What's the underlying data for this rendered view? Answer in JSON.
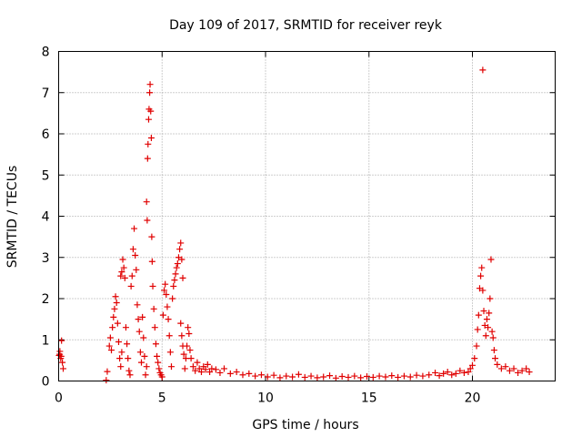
{
  "chart_data": {
    "type": "scatter",
    "title": "Day 109 of 2017, SRMTID for receiver reyk",
    "xlabel": "GPS time / hours",
    "ylabel": "SRMTID / TECUs",
    "xlim": [
      0,
      24
    ],
    "ylim": [
      0,
      8
    ],
    "xticks": [
      0,
      5,
      10,
      15,
      20
    ],
    "yticks": [
      0,
      1,
      2,
      3,
      4,
      5,
      6,
      7,
      8
    ],
    "grid": true,
    "marker": "+",
    "marker_color": "#e00000",
    "series": [
      {
        "name": "SRMTID",
        "points": [
          [
            0.02,
            0.62
          ],
          [
            0.06,
            0.72
          ],
          [
            0.1,
            0.55
          ],
          [
            0.14,
            0.98
          ],
          [
            0.18,
            0.45
          ],
          [
            0.22,
            0.3
          ],
          [
            0.05,
            0.65
          ],
          [
            0.12,
            0.6
          ],
          [
            2.3,
            0.02
          ],
          [
            2.35,
            0.23
          ],
          [
            2.45,
            0.85
          ],
          [
            2.5,
            1.05
          ],
          [
            2.55,
            0.75
          ],
          [
            2.6,
            1.3
          ],
          [
            2.65,
            1.55
          ],
          [
            2.7,
            1.75
          ],
          [
            2.75,
            2.05
          ],
          [
            2.8,
            1.9
          ],
          [
            2.85,
            1.4
          ],
          [
            2.9,
            0.95
          ],
          [
            2.95,
            0.55
          ],
          [
            3.0,
            0.35
          ],
          [
            3.05,
            0.7
          ],
          [
            3.0,
            2.55
          ],
          [
            3.05,
            2.65
          ],
          [
            3.1,
            2.95
          ],
          [
            3.15,
            2.75
          ],
          [
            3.2,
            2.5
          ],
          [
            3.25,
            1.3
          ],
          [
            3.3,
            0.9
          ],
          [
            3.35,
            0.55
          ],
          [
            3.4,
            0.25
          ],
          [
            3.45,
            0.15
          ],
          [
            3.5,
            2.3
          ],
          [
            3.55,
            2.55
          ],
          [
            3.6,
            3.2
          ],
          [
            3.65,
            3.7
          ],
          [
            3.7,
            3.05
          ],
          [
            3.75,
            2.7
          ],
          [
            3.8,
            1.85
          ],
          [
            3.85,
            1.5
          ],
          [
            3.9,
            1.2
          ],
          [
            3.95,
            0.7
          ],
          [
            4.0,
            0.45
          ],
          [
            4.05,
            1.55
          ],
          [
            4.1,
            1.05
          ],
          [
            4.15,
            0.6
          ],
          [
            4.2,
            0.15
          ],
          [
            4.25,
            0.35
          ],
          [
            4.25,
            4.35
          ],
          [
            4.28,
            3.9
          ],
          [
            4.3,
            5.4
          ],
          [
            4.32,
            5.75
          ],
          [
            4.35,
            6.35
          ],
          [
            4.37,
            6.6
          ],
          [
            4.4,
            7.0
          ],
          [
            4.42,
            7.2
          ],
          [
            4.45,
            6.55
          ],
          [
            4.48,
            5.9
          ],
          [
            4.5,
            3.5
          ],
          [
            4.52,
            2.9
          ],
          [
            4.55,
            2.3
          ],
          [
            4.6,
            1.75
          ],
          [
            4.65,
            1.3
          ],
          [
            4.7,
            0.9
          ],
          [
            4.75,
            0.6
          ],
          [
            4.8,
            0.45
          ],
          [
            4.85,
            0.3
          ],
          [
            4.9,
            0.2
          ],
          [
            4.95,
            0.15
          ],
          [
            5.0,
            0.1
          ],
          [
            5.05,
            1.6
          ],
          [
            5.1,
            2.2
          ],
          [
            5.15,
            2.35
          ],
          [
            5.2,
            2.1
          ],
          [
            5.25,
            1.8
          ],
          [
            5.3,
            1.5
          ],
          [
            5.35,
            1.1
          ],
          [
            5.4,
            0.7
          ],
          [
            5.45,
            0.35
          ],
          [
            5.5,
            2.0
          ],
          [
            5.55,
            2.3
          ],
          [
            5.6,
            2.45
          ],
          [
            5.65,
            2.6
          ],
          [
            5.7,
            2.75
          ],
          [
            5.75,
            2.85
          ],
          [
            5.8,
            3.0
          ],
          [
            5.85,
            3.2
          ],
          [
            5.9,
            3.35
          ],
          [
            5.95,
            2.95
          ],
          [
            6.0,
            2.5
          ],
          [
            5.9,
            1.4
          ],
          [
            5.95,
            1.1
          ],
          [
            6.0,
            0.85
          ],
          [
            6.05,
            0.65
          ],
          [
            6.1,
            0.3
          ],
          [
            6.15,
            0.55
          ],
          [
            6.2,
            0.85
          ],
          [
            6.25,
            1.3
          ],
          [
            6.3,
            1.15
          ],
          [
            6.35,
            0.75
          ],
          [
            6.4,
            0.55
          ],
          [
            6.5,
            0.35
          ],
          [
            6.6,
            0.25
          ],
          [
            6.7,
            0.45
          ],
          [
            6.8,
            0.3
          ],
          [
            6.9,
            0.22
          ],
          [
            7.0,
            0.35
          ],
          [
            7.1,
            0.28
          ],
          [
            7.2,
            0.4
          ],
          [
            7.3,
            0.22
          ],
          [
            7.4,
            0.3
          ],
          [
            7.6,
            0.28
          ],
          [
            7.8,
            0.2
          ],
          [
            8.0,
            0.3
          ],
          [
            8.3,
            0.18
          ],
          [
            8.6,
            0.22
          ],
          [
            8.9,
            0.15
          ],
          [
            9.2,
            0.18
          ],
          [
            9.5,
            0.12
          ],
          [
            9.8,
            0.15
          ],
          [
            10.1,
            0.1
          ],
          [
            10.4,
            0.14
          ],
          [
            10.7,
            0.08
          ],
          [
            11.0,
            0.12
          ],
          [
            11.3,
            0.1
          ],
          [
            11.6,
            0.16
          ],
          [
            11.9,
            0.09
          ],
          [
            12.2,
            0.12
          ],
          [
            12.5,
            0.08
          ],
          [
            12.8,
            0.1
          ],
          [
            13.1,
            0.13
          ],
          [
            13.4,
            0.07
          ],
          [
            13.7,
            0.11
          ],
          [
            14.0,
            0.09
          ],
          [
            14.3,
            0.12
          ],
          [
            14.6,
            0.08
          ],
          [
            14.9,
            0.11
          ],
          [
            15.2,
            0.09
          ],
          [
            15.5,
            0.12
          ],
          [
            15.8,
            0.1
          ],
          [
            16.1,
            0.13
          ],
          [
            16.4,
            0.09
          ],
          [
            16.7,
            0.12
          ],
          [
            17.0,
            0.1
          ],
          [
            17.3,
            0.14
          ],
          [
            17.6,
            0.12
          ],
          [
            17.9,
            0.15
          ],
          [
            18.2,
            0.2
          ],
          [
            18.4,
            0.13
          ],
          [
            18.6,
            0.18
          ],
          [
            18.8,
            0.22
          ],
          [
            19.0,
            0.15
          ],
          [
            19.2,
            0.18
          ],
          [
            19.4,
            0.25
          ],
          [
            19.6,
            0.2
          ],
          [
            19.8,
            0.22
          ],
          [
            19.9,
            0.3
          ],
          [
            20.0,
            0.38
          ],
          [
            20.1,
            0.55
          ],
          [
            20.2,
            0.85
          ],
          [
            20.25,
            1.25
          ],
          [
            20.3,
            1.6
          ],
          [
            20.35,
            2.25
          ],
          [
            20.4,
            2.55
          ],
          [
            20.45,
            2.75
          ],
          [
            20.5,
            2.2
          ],
          [
            20.55,
            1.7
          ],
          [
            20.5,
            7.55
          ],
          [
            20.6,
            1.35
          ],
          [
            20.65,
            1.1
          ],
          [
            20.7,
            1.5
          ],
          [
            20.75,
            1.3
          ],
          [
            20.8,
            1.65
          ],
          [
            20.85,
            2.0
          ],
          [
            20.9,
            2.95
          ],
          [
            20.95,
            1.2
          ],
          [
            21.0,
            1.05
          ],
          [
            21.05,
            0.75
          ],
          [
            21.1,
            0.55
          ],
          [
            21.2,
            0.4
          ],
          [
            21.4,
            0.3
          ],
          [
            21.6,
            0.35
          ],
          [
            21.8,
            0.25
          ],
          [
            22.0,
            0.3
          ],
          [
            22.2,
            0.2
          ],
          [
            22.4,
            0.25
          ],
          [
            22.6,
            0.3
          ],
          [
            22.75,
            0.22
          ]
        ]
      }
    ]
  }
}
